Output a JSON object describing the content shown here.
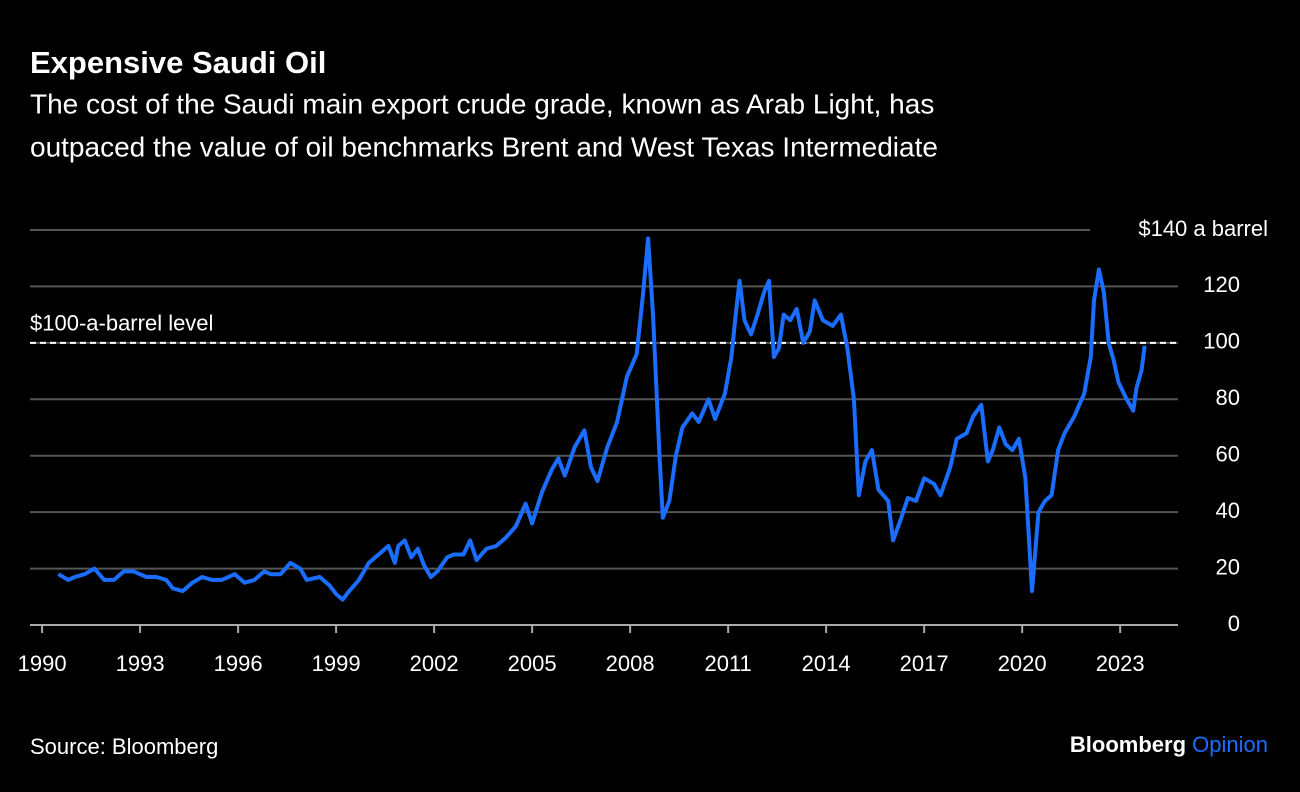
{
  "chart_data": {
    "type": "line",
    "title": "Expensive Saudi Oil",
    "subtitle": [
      "The cost of the Saudi main export crude grade, known as Arab Light, has",
      "outpaced the value of oil benchmarks Brent and West Texas Intermediate"
    ],
    "source": "Source: Bloomberg",
    "brand": [
      "Bloomberg",
      "Opinion"
    ],
    "color": "#1a6dff",
    "reference_line": {
      "value": 100,
      "label": "$100-a-barrel level"
    },
    "grid": true,
    "xlim": [
      1989.63,
      2024.77
    ],
    "xticks": [
      1990,
      1993,
      1996,
      1999,
      2002,
      2005,
      2008,
      2011,
      2014,
      2017,
      2020,
      2023
    ],
    "ylim": [
      0,
      140
    ],
    "yticks": [
      0,
      20,
      40,
      60,
      80,
      100,
      120,
      {
        "value": 140,
        "label": "$140 a barrel"
      }
    ],
    "x": [
      1990.5,
      1990.8,
      1991.0,
      1991.3,
      1991.6,
      1991.9,
      1992.2,
      1992.5,
      1992.8,
      1993.2,
      1993.5,
      1993.8,
      1994.0,
      1994.3,
      1994.6,
      1994.9,
      1995.2,
      1995.5,
      1995.9,
      1996.2,
      1996.5,
      1996.8,
      1997.0,
      1997.3,
      1997.6,
      1997.9,
      1998.1,
      1998.5,
      1998.8,
      1999.0,
      1999.2,
      1999.4,
      1999.7,
      2000.0,
      2000.3,
      2000.6,
      2000.8,
      2000.9,
      2001.1,
      2001.3,
      2001.5,
      2001.7,
      2001.9,
      2002.1,
      2002.4,
      2002.6,
      2002.9,
      2003.1,
      2003.3,
      2003.6,
      2003.9,
      2004.2,
      2004.5,
      2004.8,
      2005.0,
      2005.3,
      2005.6,
      2005.8,
      2006.0,
      2006.3,
      2006.6,
      2006.8,
      2007.0,
      2007.3,
      2007.6,
      2007.9,
      2008.2,
      2008.4,
      2008.55,
      2008.7,
      2008.9,
      2009.0,
      2009.2,
      2009.4,
      2009.6,
      2009.9,
      2010.1,
      2010.4,
      2010.6,
      2010.9,
      2011.1,
      2011.25,
      2011.35,
      2011.5,
      2011.7,
      2011.9,
      2012.1,
      2012.25,
      2012.4,
      2012.55,
      2012.7,
      2012.9,
      2013.1,
      2013.3,
      2013.5,
      2013.65,
      2013.9,
      2014.2,
      2014.45,
      2014.65,
      2014.85,
      2015.0,
      2015.2,
      2015.4,
      2015.6,
      2015.9,
      2016.05,
      2016.3,
      2016.5,
      2016.75,
      2017.0,
      2017.3,
      2017.5,
      2017.8,
      2018.0,
      2018.3,
      2018.5,
      2018.75,
      2018.95,
      2019.1,
      2019.3,
      2019.5,
      2019.7,
      2019.9,
      2020.1,
      2020.3,
      2020.5,
      2020.7,
      2020.9,
      2021.1,
      2021.3,
      2021.6,
      2021.9,
      2022.1,
      2022.2,
      2022.35,
      2022.5,
      2022.65,
      2022.8,
      2022.95,
      2023.2,
      2023.4,
      2023.5,
      2023.65,
      2023.75
    ],
    "values": [
      18,
      16,
      17,
      18,
      20,
      16,
      16,
      19,
      19,
      17,
      17,
      16,
      13,
      12,
      15,
      17,
      16,
      16,
      18,
      15,
      16,
      19,
      18,
      18,
      22,
      20,
      16,
      17,
      14,
      11,
      9,
      12,
      16,
      22,
      25,
      28,
      22,
      28,
      30,
      24,
      27,
      21,
      17,
      19,
      24,
      25,
      25,
      30,
      23,
      27,
      28,
      31,
      35,
      43,
      36,
      47,
      55,
      59,
      53,
      63,
      69,
      56,
      51,
      63,
      72,
      88,
      96,
      118,
      137,
      110,
      60,
      38,
      44,
      60,
      70,
      75,
      72,
      80,
      73,
      82,
      95,
      112,
      122,
      108,
      103,
      110,
      118,
      122,
      95,
      98,
      110,
      108,
      112,
      100,
      104,
      115,
      108,
      106,
      110,
      98,
      80,
      46,
      58,
      62,
      48,
      44,
      30,
      38,
      45,
      44,
      52,
      50,
      46,
      56,
      66,
      68,
      74,
      78,
      58,
      62,
      70,
      64,
      62,
      66,
      52,
      12,
      40,
      44,
      46,
      62,
      68,
      74,
      82,
      95,
      115,
      126,
      118,
      100,
      94,
      86,
      80,
      76,
      84,
      90,
      99
    ]
  }
}
